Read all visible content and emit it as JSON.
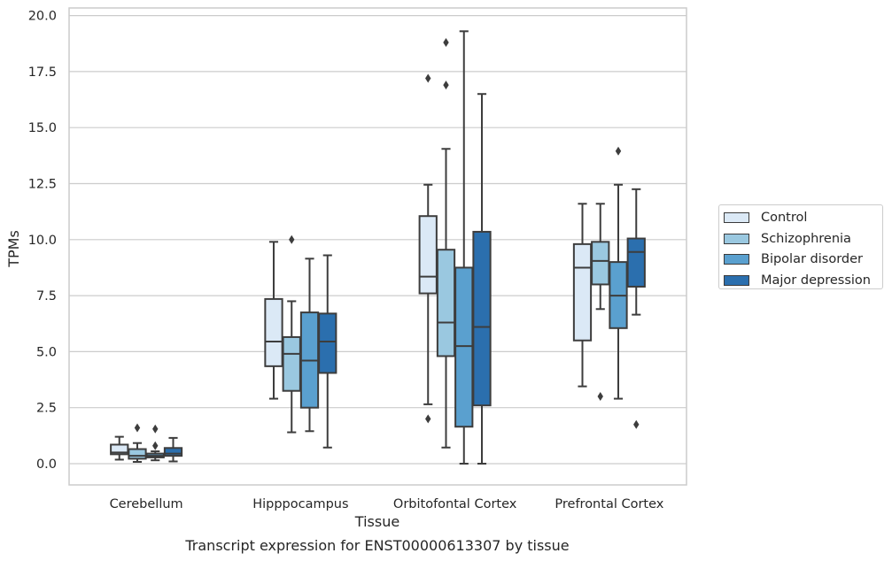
{
  "chart_data": {
    "type": "box",
    "xlabel": "Tissue",
    "ylabel": "TPMs",
    "caption": "Transcript expression for ENST00000613307 by tissue",
    "ylim": [
      -0.95,
      20.3
    ],
    "yticks": [
      0.0,
      2.5,
      5.0,
      7.5,
      10.0,
      12.5,
      15.0,
      17.5,
      20.0
    ],
    "ytick_labels": [
      "0.0",
      "2.5",
      "5.0",
      "7.5",
      "10.0",
      "12.5",
      "15.0",
      "17.5",
      "20.0"
    ],
    "grid": "horizontal",
    "legend_position": "right",
    "categories": [
      "Cerebellum",
      "Hipppocampus",
      "Orbitofontal Cortex",
      "Prefrontal Cortex"
    ],
    "series": [
      {
        "name": "Control",
        "color": "#dbe9f6",
        "boxes": [
          {
            "whislo": 0.18,
            "q1": 0.42,
            "med": 0.5,
            "q3": 0.85,
            "whishi": 1.2,
            "fliers": []
          },
          {
            "whislo": 2.9,
            "q1": 4.35,
            "med": 5.45,
            "q3": 7.35,
            "whishi": 9.9,
            "fliers": []
          },
          {
            "whislo": 2.65,
            "q1": 7.6,
            "med": 8.35,
            "q3": 11.05,
            "whishi": 12.45,
            "fliers": [
              2.0,
              17.2
            ]
          },
          {
            "whislo": 3.45,
            "q1": 5.5,
            "med": 8.75,
            "q3": 9.8,
            "whishi": 11.6,
            "fliers": []
          }
        ]
      },
      {
        "name": "Schizophrenia",
        "color": "#9ac8e0",
        "boxes": [
          {
            "whislo": 0.08,
            "q1": 0.22,
            "med": 0.35,
            "q3": 0.65,
            "whishi": 0.92,
            "fliers": [
              1.6
            ]
          },
          {
            "whislo": 1.4,
            "q1": 3.25,
            "med": 4.9,
            "q3": 5.65,
            "whishi": 7.25,
            "fliers": [
              10.0
            ]
          },
          {
            "whislo": 0.72,
            "q1": 4.8,
            "med": 6.3,
            "q3": 9.55,
            "whishi": 14.05,
            "fliers": [
              16.9,
              18.8
            ]
          },
          {
            "whislo": 6.9,
            "q1": 8.0,
            "med": 9.05,
            "q3": 9.9,
            "whishi": 11.6,
            "fliers": [
              3.0
            ]
          }
        ]
      },
      {
        "name": "Bipolar disorder",
        "color": "#5aa0cf",
        "boxes": [
          {
            "whislo": 0.15,
            "q1": 0.28,
            "med": 0.35,
            "q3": 0.45,
            "whishi": 0.55,
            "fliers": [
              0.8,
              1.55
            ]
          },
          {
            "whislo": 1.45,
            "q1": 2.5,
            "med": 4.6,
            "q3": 6.75,
            "whishi": 9.15,
            "fliers": []
          },
          {
            "whislo": 0.0,
            "q1": 1.65,
            "med": 5.25,
            "q3": 8.75,
            "whishi": 19.3,
            "fliers": []
          },
          {
            "whislo": 2.9,
            "q1": 6.05,
            "med": 7.5,
            "q3": 9.0,
            "whishi": 12.45,
            "fliers": [
              13.95
            ]
          }
        ]
      },
      {
        "name": "Major depression",
        "color": "#2b6fae",
        "boxes": [
          {
            "whislo": 0.1,
            "q1": 0.35,
            "med": 0.45,
            "q3": 0.7,
            "whishi": 1.15,
            "fliers": []
          },
          {
            "whislo": 0.72,
            "q1": 4.05,
            "med": 5.45,
            "q3": 6.7,
            "whishi": 9.3,
            "fliers": []
          },
          {
            "whislo": 0.0,
            "q1": 2.6,
            "med": 6.1,
            "q3": 10.35,
            "whishi": 16.5,
            "fliers": []
          },
          {
            "whislo": 6.65,
            "q1": 7.9,
            "med": 9.45,
            "q3": 10.05,
            "whishi": 12.25,
            "fliers": [
              1.75
            ]
          }
        ]
      }
    ]
  }
}
